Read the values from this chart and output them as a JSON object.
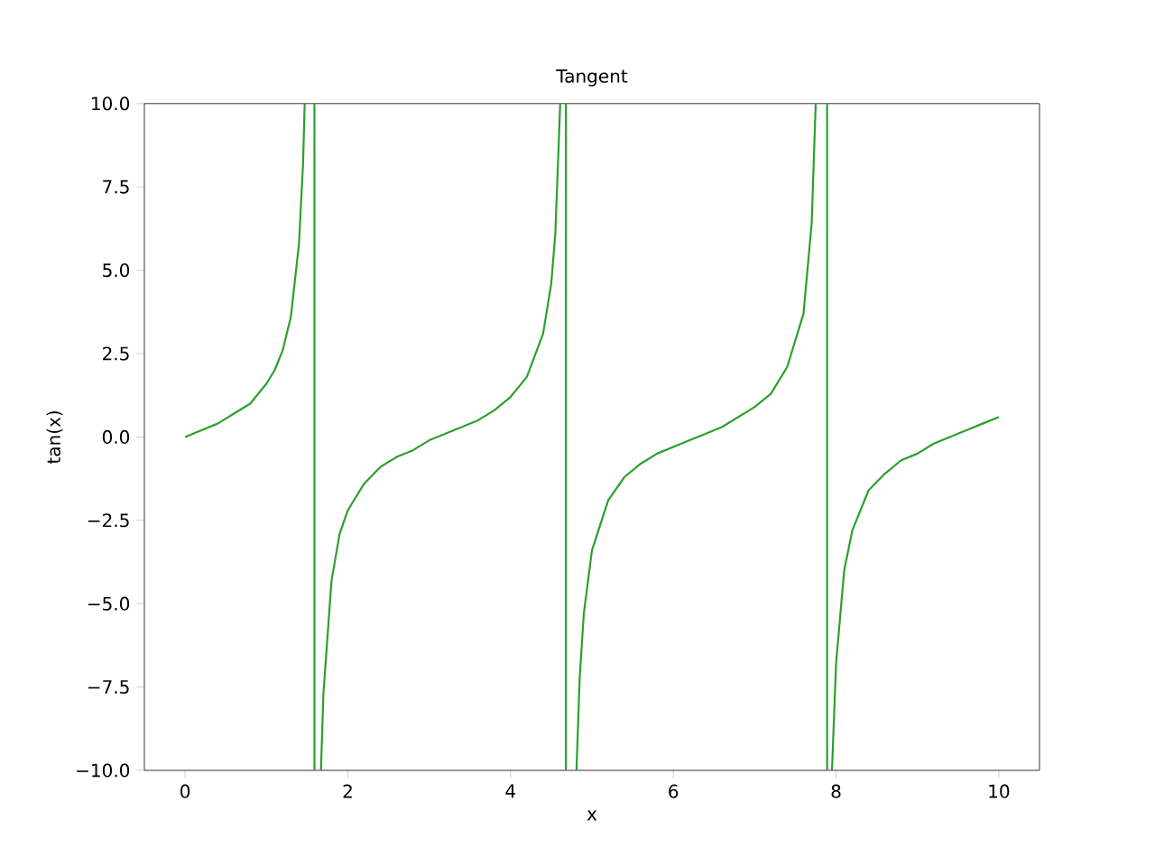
{
  "chart_data": {
    "type": "line",
    "title": "Tangent",
    "xlabel": "x",
    "ylabel": "tan(x)",
    "x": [
      0,
      0.2,
      0.4,
      0.6,
      0.8,
      1.0,
      1.1,
      1.2,
      1.3,
      1.4,
      1.45,
      1.47,
      null,
      1.59,
      1.59,
      null,
      1.67,
      1.7,
      1.8,
      1.9,
      2.0,
      2.2,
      2.4,
      2.6,
      2.8,
      3.0,
      3.2,
      3.4,
      3.6,
      3.8,
      4.0,
      4.2,
      4.4,
      4.5,
      4.55,
      4.61,
      null,
      4.68,
      4.68,
      null,
      4.81,
      4.85,
      4.9,
      5.0,
      5.2,
      5.4,
      5.6,
      5.8,
      6.0,
      6.2,
      6.4,
      6.6,
      6.8,
      7.0,
      7.2,
      7.4,
      7.6,
      7.7,
      7.75,
      null,
      7.89,
      7.89,
      null,
      7.95,
      8.0,
      8.1,
      8.2,
      8.4,
      8.6,
      8.8,
      9.0,
      9.2,
      9.4,
      9.6,
      9.8,
      10.0
    ],
    "series": [
      {
        "color": "#2ca02c",
        "values": [
          0,
          0.2,
          0.4,
          0.7,
          1.0,
          1.6,
          2.0,
          2.6,
          3.6,
          5.8,
          8.2,
          10,
          null,
          10,
          -10,
          null,
          -10,
          -7.7,
          -4.3,
          -2.9,
          -2.2,
          -1.4,
          -0.9,
          -0.6,
          -0.4,
          -0.1,
          0.1,
          0.3,
          0.5,
          0.8,
          1.2,
          1.8,
          3.1,
          4.6,
          6.1,
          10,
          null,
          10,
          -10,
          null,
          -10,
          -7.2,
          -5.3,
          -3.4,
          -1.9,
          -1.2,
          -0.8,
          -0.5,
          -0.3,
          -0.1,
          0.1,
          0.3,
          0.6,
          0.9,
          1.3,
          2.1,
          3.7,
          6.4,
          10,
          null,
          10,
          -10,
          null,
          -10,
          -6.8,
          -4.0,
          -2.8,
          -1.6,
          -1.1,
          -0.7,
          -0.5,
          -0.2,
          0.0,
          0.2,
          0.4,
          0.6
        ]
      }
    ],
    "xlim": [
      -0.5,
      10.5
    ],
    "ylim": [
      -10,
      10
    ],
    "xticks": [
      0,
      2,
      4,
      6,
      8,
      10
    ],
    "yticks": [
      {
        "value": -10,
        "label": "−10.0"
      },
      {
        "value": -7.5,
        "label": "−7.5"
      },
      {
        "value": -5,
        "label": "−5.0"
      },
      {
        "value": -2.5,
        "label": "−2.5"
      },
      {
        "value": 0,
        "label": "0.0"
      },
      {
        "value": 2.5,
        "label": "2.5"
      },
      {
        "value": 5,
        "label": "5.0"
      },
      {
        "value": 7.5,
        "label": "7.5"
      },
      {
        "value": 10,
        "label": "10.0"
      }
    ],
    "marker": "none",
    "line_style": "solid"
  }
}
